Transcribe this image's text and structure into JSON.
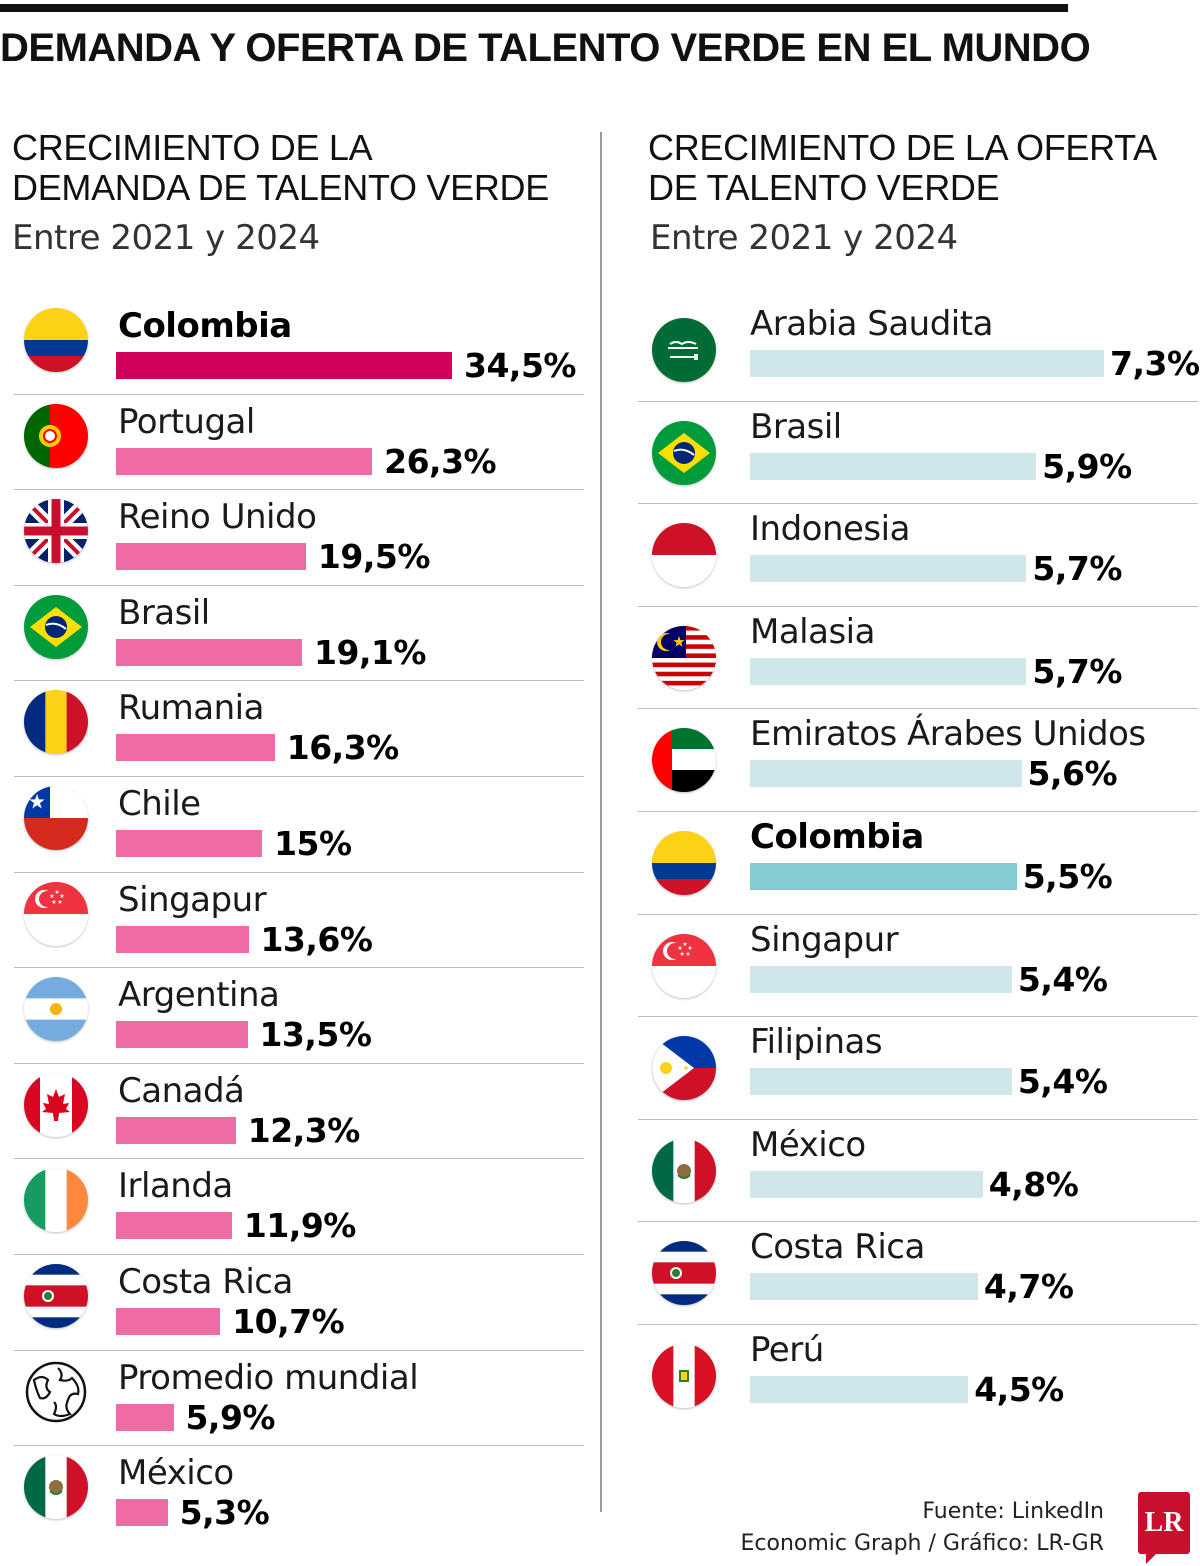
{
  "title": "DEMANDA Y OFERTA DE TALENTO VERDE EN EL MUNDO",
  "colors": {
    "demand_bar": "#ef6ba5",
    "demand_highlight": "#d1005a",
    "supply_bar": "#cfe7ea",
    "supply_highlight": "#85cbd2",
    "logo": "#c8102e"
  },
  "chart_data": [
    {
      "type": "bar",
      "orientation": "horizontal",
      "title": "CRECIMIENTO DE LA DEMANDA DE TALENTO VERDE",
      "title_lines": [
        "CRECIMIENTO DE LA",
        "DEMANDA DE TALENTO VERDE"
      ],
      "subtitle": "Entre 2021 y 2024",
      "unit": "%",
      "highlight": "Colombia",
      "categories": [
        "Colombia",
        "Portugal",
        "Reino Unido",
        "Brasil",
        "Rumania",
        "Chile",
        "Singapur",
        "Argentina",
        "Canadá",
        "Irlanda",
        "Costa Rica",
        "Promedio mundial",
        "México"
      ],
      "values": [
        34.5,
        26.3,
        19.5,
        19.1,
        16.3,
        15,
        13.6,
        13.5,
        12.3,
        11.9,
        10.7,
        5.9,
        5.3
      ],
      "value_labels": [
        "34,5%",
        "26,3%",
        "19,5%",
        "19,1%",
        "16,3%",
        "15%",
        "13,6%",
        "13,5%",
        "12,3%",
        "11,9%",
        "10,7%",
        "5,9%",
        "5,3%"
      ],
      "icons": [
        "colombia-flag-icon",
        "portugal-flag-icon",
        "united-kingdom-flag-icon",
        "brazil-flag-icon",
        "romania-flag-icon",
        "chile-flag-icon",
        "singapore-flag-icon",
        "argentina-flag-icon",
        "canada-flag-icon",
        "ireland-flag-icon",
        "costa-rica-flag-icon",
        "globe-icon",
        "mexico-flag-icon"
      ]
    },
    {
      "type": "bar",
      "orientation": "horizontal",
      "title": "CRECIMIENTO DE LA OFERTA DE TALENTO VERDE",
      "title_lines": [
        "CRECIMIENTO DE LA OFERTA",
        "DE TALENTO VERDE"
      ],
      "subtitle": "Entre 2021 y 2024",
      "unit": "%",
      "highlight": "Colombia",
      "categories": [
        "Arabia Saudita",
        "Brasil",
        "Indonesia",
        "Malasia",
        "Emiratos Árabes Unidos",
        "Colombia",
        "Singapur",
        "Filipinas",
        "México",
        "Costa Rica",
        "Perú"
      ],
      "values": [
        7.3,
        5.9,
        5.7,
        5.7,
        5.6,
        5.5,
        5.4,
        5.4,
        4.8,
        4.7,
        4.5
      ],
      "value_labels": [
        "7,3%",
        "5,9%",
        "5,7%",
        "5,7%",
        "5,6%",
        "5,5%",
        "5,4%",
        "5,4%",
        "4,8%",
        "4,7%",
        "4,5%"
      ],
      "icons": [
        "saudi-arabia-flag-icon",
        "brazil-flag-icon",
        "indonesia-flag-icon",
        "malaysia-flag-icon",
        "uae-flag-icon",
        "colombia-flag-icon",
        "singapore-flag-icon",
        "philippines-flag-icon",
        "mexico-flag-icon",
        "costa-rica-flag-icon",
        "peru-flag-icon"
      ]
    }
  ],
  "source_lines": [
    "Fuente: LinkedIn",
    "Economic Graph / Gráfico: LR-GR"
  ],
  "logo_text": "LR"
}
